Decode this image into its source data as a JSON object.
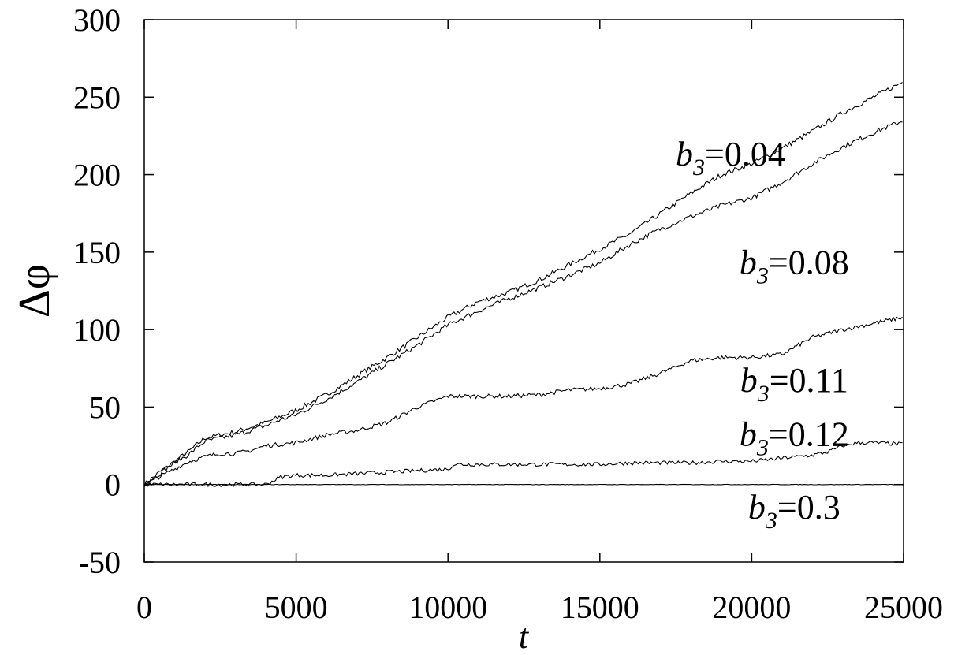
{
  "chart_data": {
    "type": "line",
    "xlabel": "t",
    "ylabel": "Δφ",
    "xlim": [
      0,
      25000
    ],
    "ylim": [
      -50,
      300
    ],
    "xticks": [
      0,
      5000,
      10000,
      15000,
      20000,
      25000
    ],
    "yticks": [
      -50,
      0,
      50,
      100,
      150,
      200,
      250,
      300
    ],
    "grid": false,
    "legend": "none",
    "series": [
      {
        "x": [
          0,
          500,
          1000,
          1500,
          2000,
          2500,
          3000,
          3500,
          4000,
          4500,
          5000,
          6000,
          7000,
          8000,
          9000,
          10000,
          11000,
          12000,
          13000,
          14000,
          15000,
          16000,
          17000,
          18000,
          19000,
          20000,
          21000,
          22000,
          23000,
          24000,
          25000
        ],
        "y": [
          0,
          8,
          15,
          22,
          30,
          32,
          34,
          37,
          40,
          44,
          48,
          58,
          70,
          82,
          95,
          108,
          118,
          124,
          132,
          142,
          152,
          162,
          175,
          188,
          200,
          207,
          217,
          228,
          240,
          250,
          260
        ]
      },
      {
        "x": [
          0,
          500,
          1000,
          1500,
          2000,
          2500,
          3000,
          3500,
          4000,
          4500,
          5000,
          6000,
          7000,
          8000,
          9000,
          10000,
          11000,
          12000,
          13000,
          14000,
          15000,
          16000,
          17000,
          18000,
          19000,
          20000,
          21000,
          22000,
          23000,
          24000,
          25000
        ],
        "y": [
          0,
          7,
          14,
          20,
          28,
          30,
          32,
          35,
          38,
          42,
          45,
          55,
          66,
          78,
          90,
          103,
          112,
          120,
          127,
          135,
          143,
          155,
          165,
          173,
          180,
          185,
          195,
          207,
          218,
          227,
          235
        ]
      },
      {
        "x": [
          0,
          500,
          1000,
          1500,
          2000,
          2500,
          3000,
          3500,
          4000,
          4500,
          5000,
          6000,
          7000,
          8000,
          9000,
          10000,
          11000,
          12000,
          13000,
          14000,
          15000,
          16000,
          17000,
          18000,
          19000,
          20000,
          21000,
          22000,
          23000,
          24000,
          25000
        ],
        "y": [
          0,
          5,
          10,
          15,
          18,
          20,
          20,
          22,
          25,
          26,
          27,
          32,
          35,
          40,
          50,
          57,
          57,
          57,
          58,
          61,
          62,
          65,
          72,
          80,
          82,
          82,
          84,
          95,
          100,
          104,
          108
        ]
      },
      {
        "x": [
          0,
          1000,
          2000,
          3000,
          4000,
          4500,
          5000,
          6000,
          7000,
          8000,
          9000,
          10000,
          10200,
          11000,
          12000,
          13000,
          14000,
          15000,
          16000,
          17000,
          18000,
          19000,
          20000,
          21000,
          22000,
          22500,
          23000,
          23500,
          24000,
          25000
        ],
        "y": [
          0,
          0,
          0,
          0,
          0,
          5,
          6,
          6,
          7,
          8,
          9,
          10,
          13,
          13,
          13,
          13,
          13,
          13,
          14,
          14,
          14,
          15,
          15,
          17,
          19,
          21,
          25,
          27,
          27,
          26
        ]
      },
      {
        "x": [
          0,
          5000,
          10000,
          15000,
          20000,
          25000
        ],
        "y": [
          0,
          0,
          0,
          0,
          0,
          0
        ]
      }
    ],
    "annotations": [
      {
        "label": "b₃=0.04",
        "x": 19300,
        "y": 206
      },
      {
        "label": "b₃=0.08",
        "x": 21400,
        "y": 136
      },
      {
        "label": "b₃=0.11",
        "x": 21400,
        "y": 60
      },
      {
        "label": "b₃=0.12",
        "x": 21400,
        "y": 25
      },
      {
        "label": "b₃=0.3",
        "x": 21400,
        "y": -22
      }
    ]
  }
}
